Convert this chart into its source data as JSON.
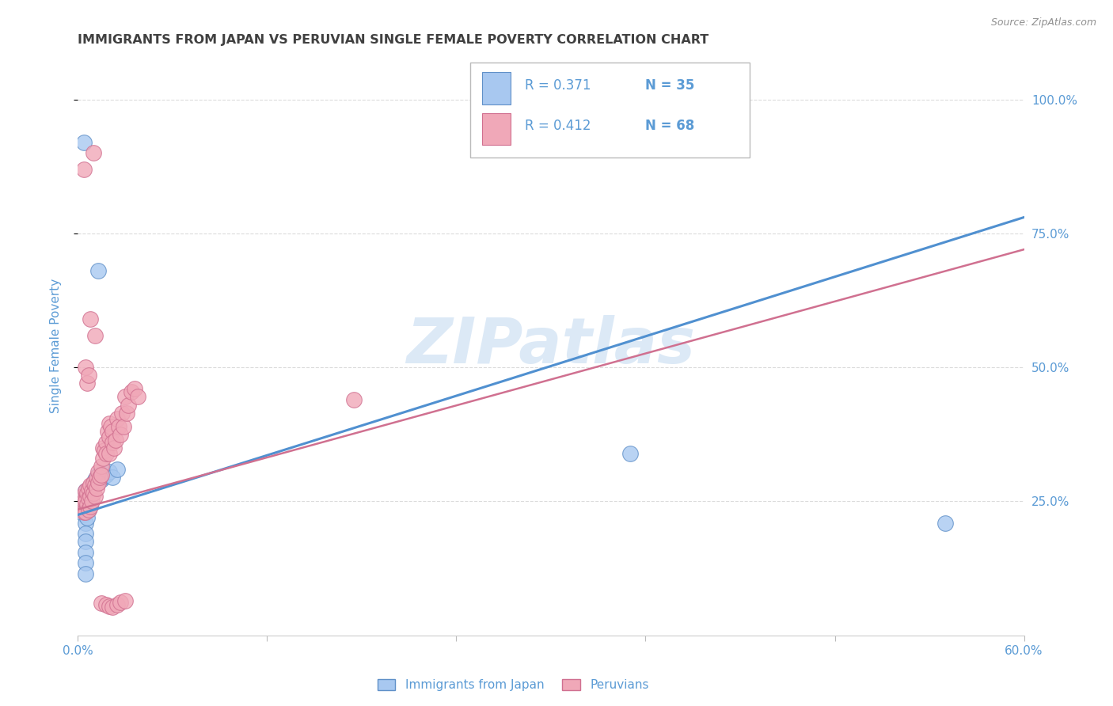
{
  "title": "IMMIGRANTS FROM JAPAN VS PERUVIAN SINGLE FEMALE POVERTY CORRELATION CHART",
  "source": "Source: ZipAtlas.com",
  "ylabel": "Single Female Poverty",
  "xlim": [
    0.0,
    0.6
  ],
  "ylim": [
    0.0,
    1.08
  ],
  "yticks_right": [
    0.25,
    0.5,
    0.75,
    1.0
  ],
  "ytick_labels_right": [
    "25.0%",
    "50.0%",
    "75.0%",
    "100.0%"
  ],
  "xticks": [
    0.0,
    0.12,
    0.24,
    0.36,
    0.48,
    0.6
  ],
  "xtick_labels": [
    "0.0%",
    "",
    "",
    "",
    "",
    "60.0%"
  ],
  "legend_r1": "R = 0.371",
  "legend_n1": "N = 35",
  "legend_r2": "R = 0.412",
  "legend_n2": "N = 68",
  "legend_label1": "Immigrants from Japan",
  "legend_label2": "Peruvians",
  "color_blue_fill": "#A8C8F0",
  "color_pink_fill": "#F0A8B8",
  "color_blue_edge": "#6090C8",
  "color_pink_edge": "#D07090",
  "color_line_blue": "#5090D0",
  "color_line_pink": "#E08098",
  "color_axis_text": "#5B9BD5",
  "color_grid": "#D8D8D8",
  "color_title": "#404040",
  "color_source": "#909090",
  "color_watermark": "#C0D8F0",
  "watermark": "ZIPatlas",
  "blue_points": [
    [
      0.003,
      0.255
    ],
    [
      0.003,
      0.235
    ],
    [
      0.004,
      0.245
    ],
    [
      0.004,
      0.225
    ],
    [
      0.005,
      0.27
    ],
    [
      0.005,
      0.25
    ],
    [
      0.005,
      0.23
    ],
    [
      0.005,
      0.21
    ],
    [
      0.005,
      0.19
    ],
    [
      0.005,
      0.175
    ],
    [
      0.005,
      0.155
    ],
    [
      0.005,
      0.135
    ],
    [
      0.005,
      0.115
    ],
    [
      0.006,
      0.26
    ],
    [
      0.006,
      0.24
    ],
    [
      0.006,
      0.22
    ],
    [
      0.007,
      0.275
    ],
    [
      0.007,
      0.255
    ],
    [
      0.007,
      0.235
    ],
    [
      0.008,
      0.265
    ],
    [
      0.009,
      0.275
    ],
    [
      0.01,
      0.285
    ],
    [
      0.011,
      0.29
    ],
    [
      0.012,
      0.295
    ],
    [
      0.013,
      0.3
    ],
    [
      0.015,
      0.29
    ],
    [
      0.016,
      0.295
    ],
    [
      0.018,
      0.3
    ],
    [
      0.02,
      0.305
    ],
    [
      0.022,
      0.295
    ],
    [
      0.025,
      0.31
    ],
    [
      0.013,
      0.68
    ],
    [
      0.004,
      0.92
    ],
    [
      0.35,
      0.34
    ],
    [
      0.55,
      0.21
    ]
  ],
  "pink_points": [
    [
      0.003,
      0.26
    ],
    [
      0.003,
      0.24
    ],
    [
      0.004,
      0.25
    ],
    [
      0.004,
      0.23
    ],
    [
      0.005,
      0.27
    ],
    [
      0.005,
      0.25
    ],
    [
      0.005,
      0.23
    ],
    [
      0.006,
      0.265
    ],
    [
      0.006,
      0.245
    ],
    [
      0.007,
      0.275
    ],
    [
      0.007,
      0.255
    ],
    [
      0.007,
      0.235
    ],
    [
      0.008,
      0.28
    ],
    [
      0.008,
      0.26
    ],
    [
      0.008,
      0.24
    ],
    [
      0.009,
      0.27
    ],
    [
      0.009,
      0.25
    ],
    [
      0.01,
      0.285
    ],
    [
      0.01,
      0.265
    ],
    [
      0.011,
      0.28
    ],
    [
      0.011,
      0.26
    ],
    [
      0.012,
      0.295
    ],
    [
      0.012,
      0.275
    ],
    [
      0.013,
      0.305
    ],
    [
      0.013,
      0.285
    ],
    [
      0.014,
      0.295
    ],
    [
      0.015,
      0.315
    ],
    [
      0.015,
      0.3
    ],
    [
      0.016,
      0.35
    ],
    [
      0.016,
      0.33
    ],
    [
      0.017,
      0.345
    ],
    [
      0.018,
      0.36
    ],
    [
      0.018,
      0.34
    ],
    [
      0.019,
      0.38
    ],
    [
      0.02,
      0.395
    ],
    [
      0.02,
      0.37
    ],
    [
      0.02,
      0.34
    ],
    [
      0.021,
      0.39
    ],
    [
      0.022,
      0.38
    ],
    [
      0.022,
      0.36
    ],
    [
      0.023,
      0.35
    ],
    [
      0.024,
      0.365
    ],
    [
      0.025,
      0.405
    ],
    [
      0.026,
      0.39
    ],
    [
      0.027,
      0.375
    ],
    [
      0.028,
      0.415
    ],
    [
      0.029,
      0.39
    ],
    [
      0.03,
      0.445
    ],
    [
      0.031,
      0.415
    ],
    [
      0.032,
      0.43
    ],
    [
      0.034,
      0.455
    ],
    [
      0.036,
      0.46
    ],
    [
      0.038,
      0.445
    ],
    [
      0.008,
      0.59
    ],
    [
      0.011,
      0.56
    ],
    [
      0.005,
      0.5
    ],
    [
      0.006,
      0.47
    ],
    [
      0.007,
      0.485
    ],
    [
      0.004,
      0.87
    ],
    [
      0.01,
      0.9
    ],
    [
      0.015,
      0.06
    ],
    [
      0.018,
      0.058
    ],
    [
      0.02,
      0.055
    ],
    [
      0.022,
      0.053
    ],
    [
      0.025,
      0.058
    ],
    [
      0.027,
      0.062
    ],
    [
      0.03,
      0.065
    ],
    [
      0.175,
      0.44
    ]
  ],
  "blue_line_x": [
    0.0,
    0.6
  ],
  "blue_line_y": [
    0.225,
    0.78
  ],
  "pink_line_x": [
    0.0,
    0.6
  ],
  "pink_line_y": [
    0.235,
    0.72
  ],
  "background_color": "#FFFFFF"
}
